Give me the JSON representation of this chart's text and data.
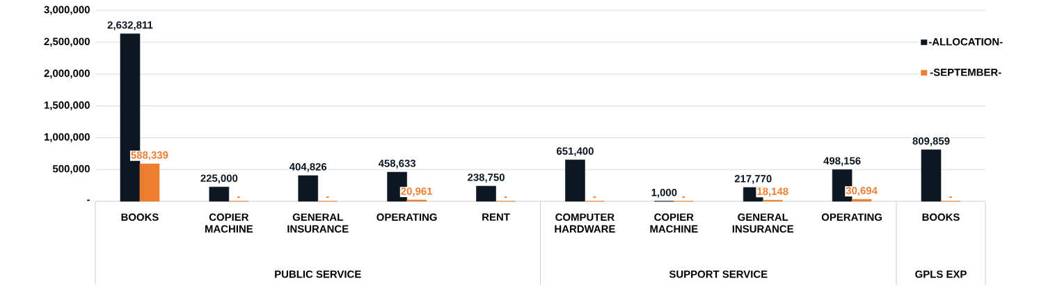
{
  "chart_data": {
    "type": "bar",
    "categories": [
      "BOOKS",
      "COPIER MACHINE",
      "GENERAL INSURANCE",
      "OPERATING",
      "RENT",
      "COMPUTER HARDWARE",
      "COPIER MACHINE",
      "GENERAL INSURANCE",
      "OPERATING",
      "BOOKS"
    ],
    "series": [
      {
        "name": "-ALLOCATION-",
        "color": "#0d1722",
        "values": [
          2632811,
          225000,
          404826,
          458633,
          238750,
          651400,
          1000,
          217770,
          498156,
          809859
        ],
        "value_labels": [
          "2,632,811",
          "225,000",
          "404,826",
          "458,633",
          "238,750",
          "651,400",
          "1,000",
          "217,770",
          "498,156",
          "809,859"
        ]
      },
      {
        "name": "-SEPTEMBER-",
        "color": "#ed7d31",
        "values": [
          588339,
          0,
          0,
          20961,
          0,
          0,
          0,
          18148,
          30694,
          0
        ],
        "value_labels": [
          "588,339",
          "-",
          "-",
          "20,961",
          "-",
          "-",
          "-",
          "18,148",
          "30,694",
          "-"
        ]
      }
    ],
    "ylim": [
      0,
      3000000
    ],
    "yticks": [
      {
        "value": 0,
        "label": "-"
      },
      {
        "value": 500000,
        "label": "500,000"
      },
      {
        "value": 1000000,
        "label": "1,000,000"
      },
      {
        "value": 1500000,
        "label": "1,500,000"
      },
      {
        "value": 2000000,
        "label": "2,000,000"
      },
      {
        "value": 2500000,
        "label": "2,500,000"
      },
      {
        "value": 3000000,
        "label": "3,000,000"
      }
    ],
    "grid": "y",
    "legend": "right",
    "annotations": [
      "PUBLIC SERVICE",
      "SUPPORT SERVICE",
      "GPLS EXP"
    ]
  }
}
